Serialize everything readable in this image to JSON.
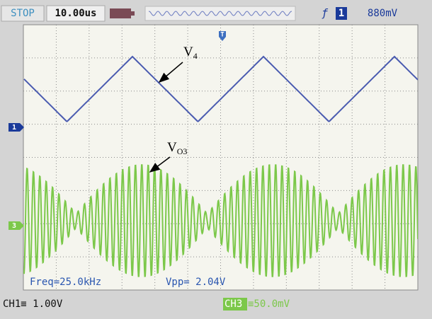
{
  "top_bar": {
    "status": "STOP",
    "timebase": "10.00us",
    "trigger_source": "1",
    "trigger_level": "880mV"
  },
  "screen": {
    "trigger_marker": "T",
    "channel_markers": [
      "1",
      "3"
    ],
    "labels": [
      {
        "text": "V",
        "sub": "4"
      },
      {
        "text": "V",
        "sub": "O3"
      }
    ],
    "measurements": [
      "Freq=25.0kHz",
      "Vpp= 2.04V"
    ]
  },
  "bottom_bar": {
    "ch1": "CH1≡ 1.00V",
    "ch3_name": "CH3",
    "ch3_scale": "≡50.0mV"
  }
}
